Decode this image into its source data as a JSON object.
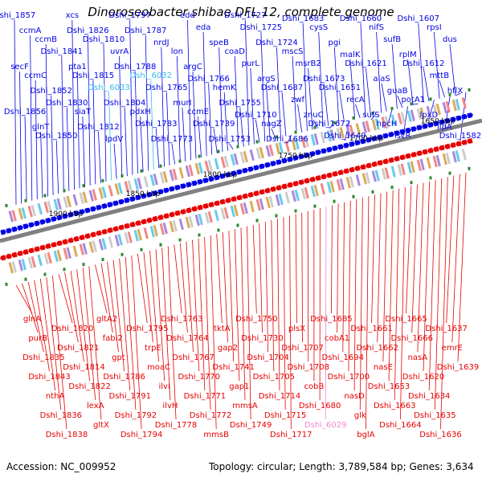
{
  "title": "Dinoroseobacter shibae DFL 12, complete genome",
  "footer": {
    "accession": "Accession: NC_009952",
    "summary": "Topology: circular; Length: 3,789,584 bp; Genes: 3,634"
  },
  "colors": {
    "upper_strand": "#0000e6",
    "lower_strand": "#e60000",
    "cyan_label": "#33bbee",
    "pink_label": "#ee88cc",
    "backbone": "#808080",
    "scale_tick": "#2e8b2e"
  },
  "scale_labels": [
    {
      "label": "1900 kbp",
      "kbp": 1900
    },
    {
      "label": "1850 kbp",
      "kbp": 1850
    },
    {
      "label": "1800 kbp",
      "kbp": 1800
    },
    {
      "label": "1750 kbp",
      "kbp": 1750
    },
    {
      "label": "1700 kbp",
      "kbp": 1700
    },
    {
      "label": "1650 kbp",
      "kbp": 1650
    }
  ],
  "upper_labels": [
    {
      "t": "Dshi_1857",
      "k": "b"
    },
    {
      "t": "secF",
      "k": "b"
    },
    {
      "t": "Dshi_1856",
      "k": "b"
    },
    {
      "t": "ccmA",
      "k": "b"
    },
    {
      "t": "ccmC",
      "k": "b"
    },
    {
      "t": "glnT",
      "k": "b"
    },
    {
      "t": "ccmB",
      "k": "b"
    },
    {
      "t": "Dshi_1852",
      "k": "b"
    },
    {
      "t": "Dshi_1850",
      "k": "b"
    },
    {
      "t": "Dshi_1841",
      "k": "b"
    },
    {
      "t": "Dshi_1830",
      "k": "b"
    },
    {
      "t": "xcs",
      "k": "b"
    },
    {
      "t": "pta1",
      "k": "b"
    },
    {
      "t": "siaT",
      "k": "b"
    },
    {
      "t": "Dshi_1826",
      "k": "b"
    },
    {
      "t": "Dshi_1815",
      "k": "b"
    },
    {
      "t": "Dshi_1812",
      "k": "b"
    },
    {
      "t": "Dshi_1810",
      "k": "b"
    },
    {
      "t": "Dshi_6033",
      "k": "c"
    },
    {
      "t": "lpdV",
      "k": "b"
    },
    {
      "t": "uvrA",
      "k": "b"
    },
    {
      "t": "Dshi_1804",
      "k": "b"
    },
    {
      "t": "Dshi_1797",
      "k": "b"
    },
    {
      "t": "Dshi_1788",
      "k": "b"
    },
    {
      "t": "pdxH",
      "k": "b"
    },
    {
      "t": "Dshi_1787",
      "k": "b"
    },
    {
      "t": "Dshi_6032",
      "k": "c"
    },
    {
      "t": "Dshi_1783",
      "k": "b"
    },
    {
      "t": "nrdJ",
      "k": "b"
    },
    {
      "t": "Dshi_1765",
      "k": "b"
    },
    {
      "t": "Dshi_1773",
      "k": "b"
    },
    {
      "t": "lon",
      "k": "b"
    },
    {
      "t": "murI",
      "k": "b"
    },
    {
      "t": "edd",
      "k": "b"
    },
    {
      "t": "argC",
      "k": "b"
    },
    {
      "t": "ccmE",
      "k": "b"
    },
    {
      "t": "eda",
      "k": "b"
    },
    {
      "t": "Dshi_1766",
      "k": "b"
    },
    {
      "t": "Dshi_1739",
      "k": "b"
    },
    {
      "t": "speB",
      "k": "b"
    },
    {
      "t": "hemK",
      "k": "b"
    },
    {
      "t": "Dshi_1753",
      "k": "b"
    },
    {
      "t": "coaD",
      "k": "b"
    },
    {
      "t": "Dshi_1755",
      "k": "b"
    },
    {
      "t": "Dshi_1727",
      "k": "b"
    },
    {
      "t": "purL",
      "k": "b"
    },
    {
      "t": "Dshi_1710",
      "k": "b"
    },
    {
      "t": "Dshi_1725",
      "k": "b"
    },
    {
      "t": "argS",
      "k": "b"
    },
    {
      "t": "nagZ",
      "k": "b"
    },
    {
      "t": "Dshi_1724",
      "k": "b"
    },
    {
      "t": "Dshi_1687",
      "k": "b"
    },
    {
      "t": "Dshi_1686",
      "k": "b"
    },
    {
      "t": "mscS",
      "k": "b"
    },
    {
      "t": "zwf",
      "k": "b"
    },
    {
      "t": "Dshi_1683",
      "k": "b"
    },
    {
      "t": "msrB2",
      "k": "b"
    },
    {
      "t": "znuC",
      "k": "b"
    },
    {
      "t": "cysS",
      "k": "b"
    },
    {
      "t": "Dshi_1673",
      "k": "b"
    },
    {
      "t": "Dshi_1672",
      "k": "b"
    },
    {
      "t": "pgi",
      "k": "b"
    },
    {
      "t": "Dshi_1651",
      "k": "b"
    },
    {
      "t": "Dshi_1649",
      "k": "b"
    },
    {
      "t": "malK",
      "k": "b"
    },
    {
      "t": "recA",
      "k": "b"
    },
    {
      "t": "Dshi_1660",
      "k": "b"
    },
    {
      "t": "Dshi_1621",
      "k": "b"
    },
    {
      "t": "sufS",
      "k": "b"
    },
    {
      "t": "nifS",
      "k": "b"
    },
    {
      "t": "alaS",
      "k": "b"
    },
    {
      "t": "hpcH",
      "k": "b"
    },
    {
      "t": "sufB",
      "k": "b"
    },
    {
      "t": "guaB",
      "k": "b"
    },
    {
      "t": "iscR",
      "k": "b"
    },
    {
      "t": "rplM",
      "k": "b"
    },
    {
      "t": "potA1",
      "k": "b"
    },
    {
      "t": "Dshi_1607",
      "k": "b"
    },
    {
      "t": "Dshi_1612",
      "k": "b"
    },
    {
      "t": "lpxD",
      "k": "b"
    },
    {
      "t": "rpsI",
      "k": "b"
    },
    {
      "t": "mttB",
      "k": "b"
    },
    {
      "t": "lipA",
      "k": "b"
    },
    {
      "t": "dus",
      "k": "b"
    },
    {
      "t": "hflX",
      "k": "b"
    },
    {
      "t": "Dshi_1582",
      "k": "b"
    }
  ],
  "lower_labels": [
    {
      "t": "glnA",
      "k": "r"
    },
    {
      "t": "purB",
      "k": "r"
    },
    {
      "t": "Dshi_1835",
      "k": "r"
    },
    {
      "t": "Dshi_1843",
      "k": "r"
    },
    {
      "t": "nthA",
      "k": "r"
    },
    {
      "t": "Dshi_1836",
      "k": "r"
    },
    {
      "t": "Dshi_1838",
      "k": "r"
    },
    {
      "t": "Dshi_1820",
      "k": "r"
    },
    {
      "t": "Dshi_1821",
      "k": "r"
    },
    {
      "t": "Dshi_1814",
      "k": "r"
    },
    {
      "t": "Dshi_1822",
      "k": "r"
    },
    {
      "t": "lexA",
      "k": "r"
    },
    {
      "t": "gltX",
      "k": "r"
    },
    {
      "t": "gltA2",
      "k": "r"
    },
    {
      "t": "fabI2",
      "k": "r"
    },
    {
      "t": "gpt",
      "k": "r"
    },
    {
      "t": "Dshi_1786",
      "k": "r"
    },
    {
      "t": "Dshi_1791",
      "k": "r"
    },
    {
      "t": "Dshi_1792",
      "k": "r"
    },
    {
      "t": "Dshi_1794",
      "k": "r"
    },
    {
      "t": "Dshi_1795",
      "k": "r"
    },
    {
      "t": "trpE",
      "k": "r"
    },
    {
      "t": "moaC",
      "k": "r"
    },
    {
      "t": "ilvI",
      "k": "r"
    },
    {
      "t": "ilvH",
      "k": "r"
    },
    {
      "t": "Dshi_1778",
      "k": "r"
    },
    {
      "t": "Dshi_1763",
      "k": "r"
    },
    {
      "t": "Dshi_1764",
      "k": "r"
    },
    {
      "t": "Dshi_1767",
      "k": "r"
    },
    {
      "t": "Dshi_1770",
      "k": "r"
    },
    {
      "t": "Dshi_1771",
      "k": "r"
    },
    {
      "t": "Dshi_1772",
      "k": "r"
    },
    {
      "t": "mmsB",
      "k": "r"
    },
    {
      "t": "tktA",
      "k": "r"
    },
    {
      "t": "gap2",
      "k": "r"
    },
    {
      "t": "Dshi_1741",
      "k": "r"
    },
    {
      "t": "gap1",
      "k": "r"
    },
    {
      "t": "mmsA",
      "k": "r"
    },
    {
      "t": "Dshi_1749",
      "k": "r"
    },
    {
      "t": "Dshi_1750",
      "k": "r"
    },
    {
      "t": "Dshi_1730",
      "k": "r"
    },
    {
      "t": "Dshi_1704",
      "k": "r"
    },
    {
      "t": "Dshi_1705",
      "k": "r"
    },
    {
      "t": "Dshi_1714",
      "k": "r"
    },
    {
      "t": "Dshi_1715",
      "k": "r"
    },
    {
      "t": "Dshi_1717",
      "k": "r"
    },
    {
      "t": "plsX",
      "k": "r"
    },
    {
      "t": "Dshi_1707",
      "k": "r"
    },
    {
      "t": "Dshi_1708",
      "k": "r"
    },
    {
      "t": "cobB",
      "k": "r"
    },
    {
      "t": "Dshi_1680",
      "k": "r"
    },
    {
      "t": "Dshi_6029",
      "k": "p"
    },
    {
      "t": "Dshi_1685",
      "k": "r"
    },
    {
      "t": "cobA1",
      "k": "r"
    },
    {
      "t": "Dshi_1694",
      "k": "r"
    },
    {
      "t": "Dshi_1700",
      "k": "r"
    },
    {
      "t": "nasD",
      "k": "r"
    },
    {
      "t": "glk",
      "k": "r"
    },
    {
      "t": "bglA",
      "k": "r"
    },
    {
      "t": "Dshi_1661",
      "k": "r"
    },
    {
      "t": "Dshi_1662",
      "k": "r"
    },
    {
      "t": "nasE",
      "k": "r"
    },
    {
      "t": "Dshi_1653",
      "k": "r"
    },
    {
      "t": "Dshi_1663",
      "k": "r"
    },
    {
      "t": "Dshi_1664",
      "k": "r"
    },
    {
      "t": "Dshi_1665",
      "k": "r"
    },
    {
      "t": "Dshi_1666",
      "k": "r"
    },
    {
      "t": "nasA",
      "k": "r"
    },
    {
      "t": "Dshi_1620",
      "k": "r"
    },
    {
      "t": "Dshi_1634",
      "k": "r"
    },
    {
      "t": "Dshi_1635",
      "k": "r"
    },
    {
      "t": "Dshi_1636",
      "k": "r"
    },
    {
      "t": "Dshi_1637",
      "k": "r"
    },
    {
      "t": "emrE",
      "k": "r"
    },
    {
      "t": "Dshi_1639",
      "k": "r"
    }
  ]
}
